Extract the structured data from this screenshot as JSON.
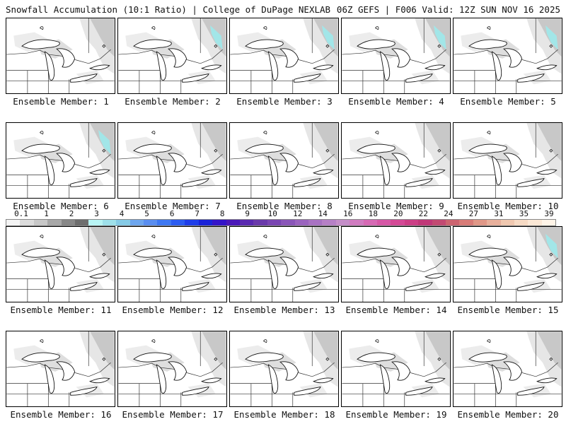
{
  "header": {
    "title": "Snowfall Accumulation (10:1 Ratio) | College of DuPage NEXLAB",
    "run_info": "06Z GEFS | F006 Valid: 12Z SUN NOV 16 2025"
  },
  "label_prefix": "Ensemble Member:",
  "members": [
    {
      "label": "Ensemble Member: 1",
      "snow": "light"
    },
    {
      "label": "Ensemble Member: 2",
      "snow": "moderate"
    },
    {
      "label": "Ensemble Member: 3",
      "snow": "moderate"
    },
    {
      "label": "Ensemble Member: 4",
      "snow": "moderate"
    },
    {
      "label": "Ensemble Member: 5",
      "snow": "moderate"
    },
    {
      "label": "Ensemble Member: 6",
      "snow": "moderate"
    },
    {
      "label": "Ensemble Member: 7",
      "snow": "light"
    },
    {
      "label": "Ensemble Member: 8",
      "snow": "light"
    },
    {
      "label": "Ensemble Member: 9",
      "snow": "light"
    },
    {
      "label": "Ensemble Member: 10",
      "snow": "light"
    },
    {
      "label": "Ensemble Member: 11",
      "snow": "light"
    },
    {
      "label": "Ensemble Member: 12",
      "snow": "light"
    },
    {
      "label": "Ensemble Member: 13",
      "snow": "light"
    },
    {
      "label": "Ensemble Member: 14",
      "snow": "light"
    },
    {
      "label": "Ensemble Member: 15",
      "snow": "moderate"
    },
    {
      "label": "Ensemble Member: 16",
      "snow": "light"
    },
    {
      "label": "Ensemble Member: 17",
      "snow": "light"
    },
    {
      "label": "Ensemble Member: 18",
      "snow": "light"
    },
    {
      "label": "Ensemble Member: 19",
      "snow": "light"
    },
    {
      "label": "Ensemble Member: 20",
      "snow": "light"
    }
  ],
  "legend": {
    "labels": [
      "0.1",
      "1",
      "2",
      "3",
      "4",
      "5",
      "6",
      "7",
      "8",
      "9",
      "10",
      "12",
      "14",
      "16",
      "18",
      "20",
      "22",
      "24",
      "27",
      "31",
      "35",
      "39"
    ],
    "colors": [
      "#f4f4f4",
      "#dcdcdc",
      "#c8c8c8",
      "#a8a8a8",
      "#888888",
      "#6e6e6e",
      "#b8f4f4",
      "#9ee0ea",
      "#86cbe6",
      "#6ea6ee",
      "#5a8ef0",
      "#3f78f2",
      "#2c5cf0",
      "#1f3ee8",
      "#1a22d8",
      "#3414c8",
      "#4a18b8",
      "#5a2ab0",
      "#6a3aaa",
      "#7a46b2",
      "#8a56b8",
      "#9a64be",
      "#a872c2",
      "#b680c6",
      "#c48ec8",
      "#d07cc0",
      "#d66ab4",
      "#d658a6",
      "#d44a96",
      "#cc3f86",
      "#c03878",
      "#c24a72",
      "#cc6470",
      "#d87c78",
      "#e09888",
      "#e8b09c",
      "#f0c8b0",
      "#f6dac4",
      "#fbe8d6",
      "#fff4e8"
    ]
  }
}
